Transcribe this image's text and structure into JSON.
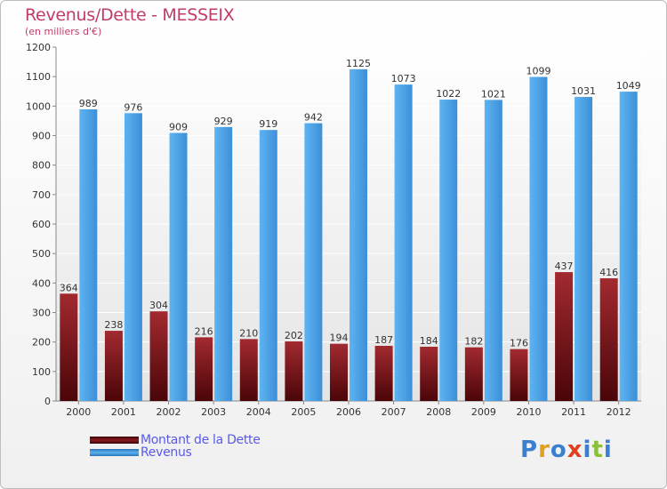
{
  "header": {
    "title": "Revenus/Dette - MESSEIX",
    "subtitle": "(en milliers d'€)"
  },
  "legend": {
    "items": [
      {
        "label": "Montant de la Dette",
        "color": "#8a1a1f"
      },
      {
        "label": "Revenus",
        "color": "#4da3e8"
      }
    ]
  },
  "logo": {
    "text": "Proxiti",
    "letter_colors": [
      "#3a7fd0",
      "#e0a020",
      "#3a7fd0",
      "#e04020",
      "#3a7fd0",
      "#8cc03a",
      "#3a7fd0"
    ]
  },
  "chart_data": {
    "type": "bar",
    "categories": [
      "2000",
      "2001",
      "2002",
      "2003",
      "2004",
      "2005",
      "2006",
      "2007",
      "2008",
      "2009",
      "2010",
      "2011",
      "2012"
    ],
    "series": [
      {
        "name": "Montant de la Dette",
        "values": [
          364,
          238,
          304,
          216,
          210,
          202,
          194,
          187,
          184,
          182,
          176,
          437,
          416
        ],
        "color": "#8a1a1f"
      },
      {
        "name": "Revenus",
        "values": [
          989,
          976,
          909,
          929,
          919,
          942,
          1125,
          1073,
          1022,
          1021,
          1099,
          1031,
          1049
        ],
        "color": "#4da3e8"
      }
    ],
    "ylim": [
      0,
      1200
    ],
    "yticks": [
      0,
      100,
      200,
      300,
      400,
      500,
      600,
      700,
      800,
      900,
      1000,
      1100,
      1200
    ],
    "grid": true,
    "legend_position": "bottom-left"
  }
}
